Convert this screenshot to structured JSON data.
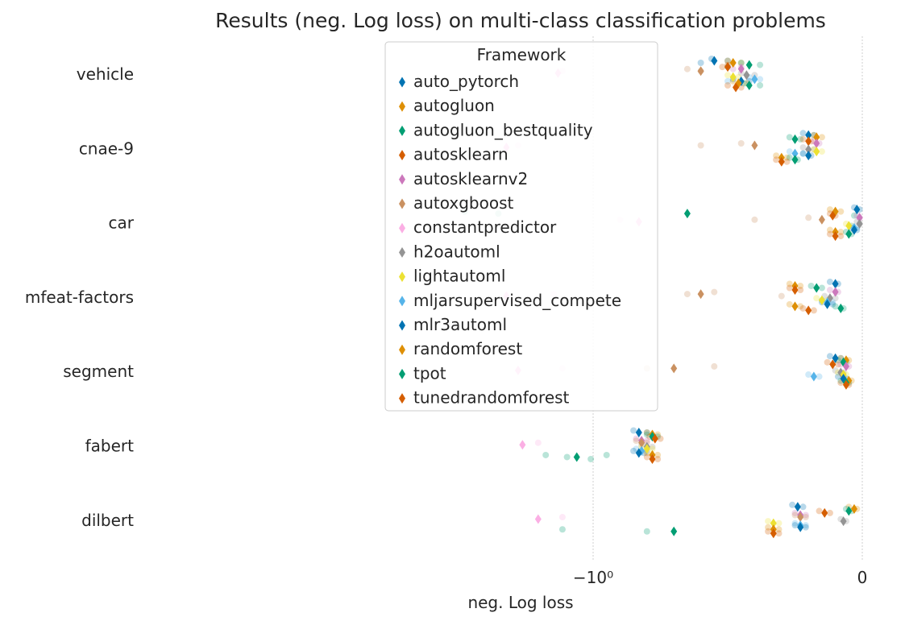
{
  "chart_data": {
    "type": "scatter",
    "title": "Results (neg. Log loss) on  multi-class classification problems",
    "xlabel": "neg. Log loss",
    "ylabel": "",
    "x_scale": "symlog",
    "xlim": [
      -4.0,
      0.12
    ],
    "x_ticks": [
      {
        "value": -1,
        "label": "−10⁰"
      },
      {
        "value": 0,
        "label": "0"
      }
    ],
    "grid": "vertical dotted",
    "legend_position": "top-center",
    "legend_title": "Framework",
    "categories": [
      "vehicle",
      "cnae-9",
      "car",
      "mfeat-factors",
      "segment",
      "fabert",
      "dilbert"
    ],
    "frameworks": [
      {
        "name": "auto_pytorch",
        "color": "#0173b2"
      },
      {
        "name": "autogluon",
        "color": "#de8f05"
      },
      {
        "name": "autogluon_bestquality",
        "color": "#029e73"
      },
      {
        "name": "autosklearn",
        "color": "#d55e00"
      },
      {
        "name": "autosklearnv2",
        "color": "#cc78bc"
      },
      {
        "name": "autoxgboost",
        "color": "#ca9161"
      },
      {
        "name": "constantpredictor",
        "color": "#fbafe4"
      },
      {
        "name": "h2oautoml",
        "color": "#949494"
      },
      {
        "name": "lightautoml",
        "color": "#ece133"
      },
      {
        "name": "mljarsupervised_compete",
        "color": "#56b4e9"
      },
      {
        "name": "mlr3automl",
        "color": "#0173b2"
      },
      {
        "name": "randomforest",
        "color": "#de8f05"
      },
      {
        "name": "tpot",
        "color": "#029e73"
      },
      {
        "name": "tunedrandomforest",
        "color": "#d55e00"
      }
    ],
    "means": {
      "vehicle": [
        -0.55,
        -0.48,
        -0.42,
        -0.5,
        -0.45,
        -0.6,
        -1.35,
        -0.43,
        -0.48,
        -0.4,
        -0.45,
        -0.46,
        -0.42,
        -0.47
      ],
      "cnae-9": [
        -0.2,
        -0.17,
        -0.25,
        -0.2,
        -0.17,
        -0.4,
        -2.1,
        -0.2,
        -0.17,
        -0.25,
        -0.2,
        -0.3,
        -0.25,
        -0.3
      ],
      "car": [
        -0.02,
        -0.1,
        -0.65,
        -0.11,
        -0.01,
        -0.15,
        -0.83,
        -0.01,
        -0.05,
        -0.03,
        -0.03,
        -0.1,
        -0.05,
        -0.1
      ],
      "mfeat-factors": [
        -0.1,
        -0.25,
        -0.17,
        -0.25,
        -0.1,
        -0.6,
        -2.1,
        -0.12,
        -0.15,
        -0.13,
        -0.13,
        -0.25,
        -0.08,
        -0.2
      ],
      "segment": [
        -0.1,
        -0.06,
        -0.07,
        -0.11,
        -0.06,
        -0.7,
        -1.9,
        -0.08,
        -0.07,
        -0.18,
        -0.07,
        -0.05,
        -0.06,
        -0.06
      ],
      "fabert": [
        -0.83,
        -0.78,
        -0.78,
        -0.77,
        -0.82,
        -0.82,
        -1.83,
        -0.8,
        -0.8,
        -0.82,
        -0.83,
        -0.78,
        -1.15,
        -0.78
      ],
      "dilbert": [
        -0.24,
        -0.03,
        -0.05,
        -0.14,
        -0.23,
        -0.23,
        -1.6,
        -0.07,
        -0.33,
        -0.23,
        -0.23,
        -0.33,
        -0.7,
        -0.33
      ]
    },
    "fold_results": {
      "vehicle": [
        [
          -0.56,
          -0.5,
          -0.6
        ],
        [
          -0.5,
          -0.45
        ],
        [
          -0.45,
          -0.38,
          -0.5
        ],
        [
          -0.5,
          -0.52
        ],
        [
          -0.45,
          -0.48
        ],
        [
          -0.65,
          -0.6
        ],
        [
          -1.3
        ],
        [
          -0.45,
          -0.4
        ],
        [
          -0.5,
          -0.46
        ],
        [
          -0.42,
          -0.38,
          -0.5
        ],
        [
          -0.48,
          -0.42
        ],
        [
          -0.48,
          -0.43
        ],
        [
          -0.44,
          -0.38
        ],
        [
          -0.5,
          -0.45
        ]
      ],
      "cnae-9": [
        [
          -0.22,
          -0.18
        ],
        [
          -0.18,
          -0.15
        ],
        [
          -0.27,
          -0.23
        ],
        [
          -0.22,
          -0.19
        ],
        [
          -0.18,
          -0.16
        ],
        [
          -0.45,
          -0.6
        ],
        [
          -1.9
        ],
        [
          -0.22,
          -0.18
        ],
        [
          -0.18,
          -0.15
        ],
        [
          -0.27,
          -0.22
        ],
        [
          -0.22,
          -0.19
        ],
        [
          -0.32,
          -0.28
        ],
        [
          -0.27,
          -0.24
        ],
        [
          -0.32,
          -0.28
        ]
      ],
      "car": [
        [
          -0.03,
          -0.01
        ],
        [
          -0.12,
          -0.08
        ],
        [
          -3.0,
          -2.25,
          -0.03
        ],
        [
          -0.12,
          -0.1
        ],
        [
          -0.02,
          -0.01
        ],
        [
          -0.2,
          -0.4
        ],
        [
          -0.9
        ],
        [
          -0.02,
          -0.01
        ],
        [
          -0.06,
          -0.04
        ],
        [
          -0.04,
          -0.02
        ],
        [
          -0.04,
          -0.02
        ],
        [
          -0.12,
          -0.08
        ],
        [
          -0.06,
          -0.04
        ],
        [
          -0.12,
          -0.08
        ]
      ],
      "mfeat-factors": [
        [
          -0.12,
          -0.09
        ],
        [
          -0.27,
          -0.23
        ],
        [
          -0.19,
          -0.15
        ],
        [
          -0.27,
          -0.23
        ],
        [
          -0.12,
          -0.09
        ],
        [
          -0.55,
          -0.65,
          -0.3
        ],
        [
          -1.4
        ],
        [
          -0.14,
          -0.1
        ],
        [
          -0.17,
          -0.13
        ],
        [
          -0.15,
          -0.11
        ],
        [
          -0.15,
          -0.11
        ],
        [
          -0.27,
          -0.23
        ],
        [
          -0.1,
          -0.07
        ],
        [
          -0.22,
          -0.18
        ]
      ],
      "segment": [
        [
          -0.12,
          -0.08
        ],
        [
          -0.08,
          -0.05
        ],
        [
          -0.09,
          -0.06
        ],
        [
          -0.13,
          -0.09
        ],
        [
          -0.08,
          -0.05
        ],
        [
          -0.55,
          -0.8
        ],
        [
          -1.3
        ],
        [
          -0.1,
          -0.07
        ],
        [
          -0.09,
          -0.06
        ],
        [
          -0.2,
          -0.16
        ],
        [
          -0.09,
          -0.06
        ],
        [
          -0.07,
          -0.04
        ],
        [
          -0.08,
          -0.05
        ],
        [
          -0.08,
          -0.05
        ]
      ],
      "fabert": [
        [
          -0.85,
          -0.8
        ],
        [
          -0.8,
          -0.76
        ],
        [
          -0.8,
          -0.76
        ],
        [
          -0.79,
          -0.75
        ],
        [
          -0.84,
          -0.8
        ],
        [
          -0.84,
          -0.8
        ],
        [
          -1.6
        ],
        [
          -0.82,
          -0.78
        ],
        [
          -0.82,
          -0.78
        ],
        [
          -0.84,
          -0.8
        ],
        [
          -0.85,
          -0.81
        ],
        [
          -0.8,
          -0.76
        ],
        [
          -1.5,
          -1.25,
          -1.02,
          -0.95
        ],
        [
          -0.8,
          -0.76
        ]
      ],
      "dilbert": [
        [
          -0.26,
          -0.22
        ],
        [
          -0.05,
          -0.02
        ],
        [
          -0.06,
          -0.04
        ],
        [
          -0.16,
          -0.12
        ],
        [
          -0.25,
          -0.21
        ],
        [
          -0.25,
          -0.21
        ],
        [
          -1.3
        ],
        [
          -0.08,
          -0.06
        ],
        [
          -0.35,
          -0.31
        ],
        [
          -0.25,
          -0.21
        ],
        [
          -0.25,
          -0.21
        ],
        [
          -0.35,
          -0.31
        ],
        [
          -1.3,
          -0.8
        ],
        [
          -0.35,
          -0.31
        ]
      ]
    }
  }
}
